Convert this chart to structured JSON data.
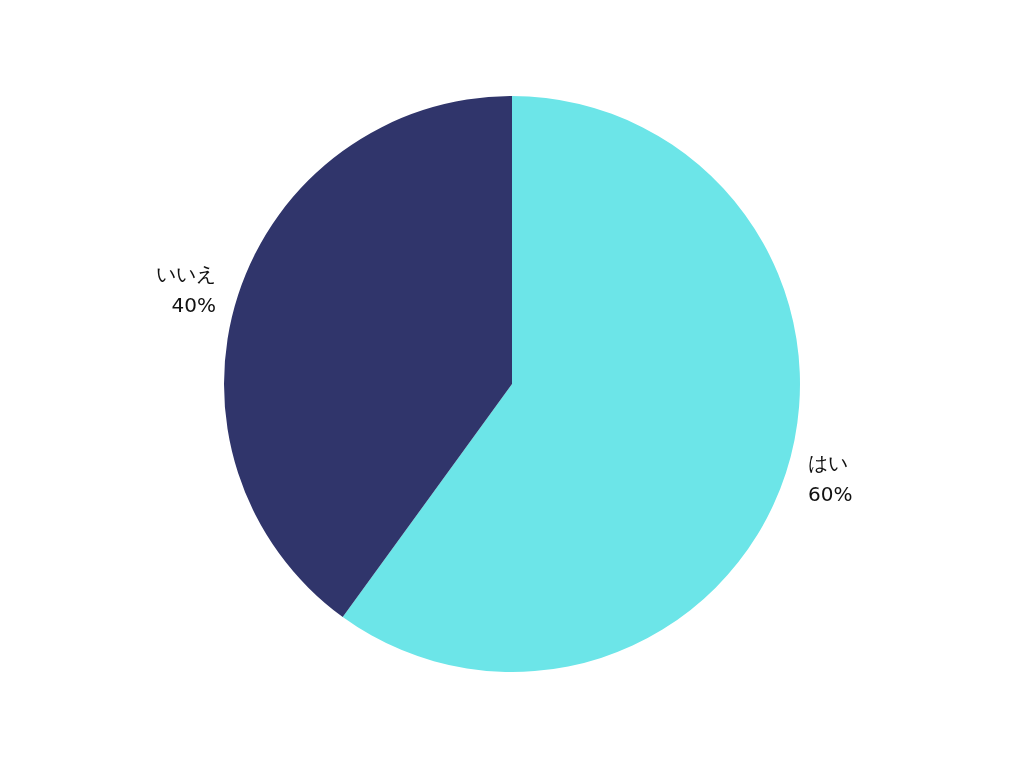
{
  "chart_data": {
    "type": "pie",
    "categories": [
      "はい",
      "いいえ"
    ],
    "values": [
      60,
      40
    ],
    "value_labels": [
      "60%",
      "40%"
    ],
    "colors": [
      "#6ce5e8",
      "#30356b"
    ]
  }
}
